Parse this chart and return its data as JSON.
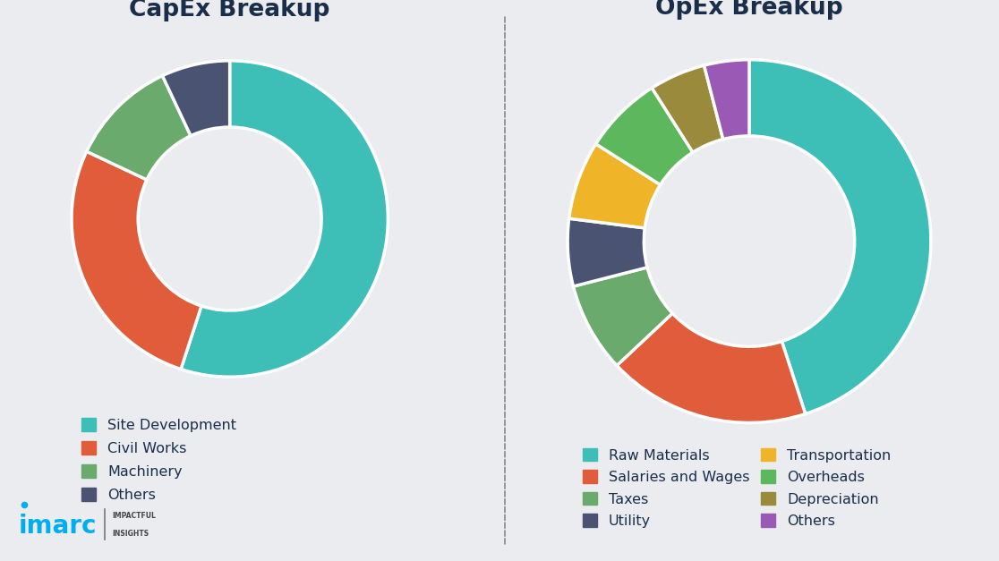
{
  "capex_labels": [
    "Site Development",
    "Civil Works",
    "Machinery",
    "Others"
  ],
  "capex_values": [
    55,
    27,
    11,
    7
  ],
  "capex_colors": [
    "#3dbfb8",
    "#e05c3a",
    "#6aaa6d",
    "#4a5472"
  ],
  "capex_title": "CapEx Breakup",
  "opex_labels": [
    "Raw Materials",
    "Salaries and Wages",
    "Taxes",
    "Utility",
    "Transportation",
    "Overheads",
    "Depreciation",
    "Others"
  ],
  "opex_values": [
    45,
    18,
    8,
    6,
    7,
    7,
    5,
    4
  ],
  "opex_colors": [
    "#3dbfb8",
    "#e05c3a",
    "#6aaa6d",
    "#4a5472",
    "#f0b429",
    "#5db85d",
    "#9a8a3c",
    "#9b59b6"
  ],
  "opex_title": "OpEx Breakup",
  "bg_color": "#eaecf0",
  "title_color": "#1a2e4a",
  "title_fontsize": 19,
  "legend_fontsize": 11.5,
  "imarc_blue": "#00aeef",
  "imarc_dark": "#333333",
  "divider_color": "#888888"
}
